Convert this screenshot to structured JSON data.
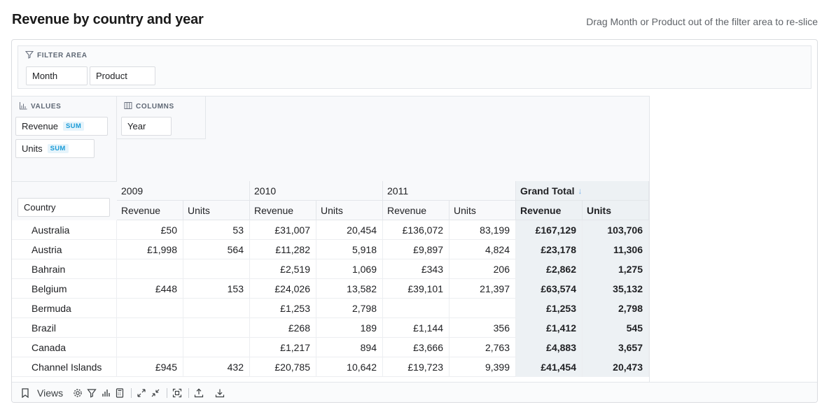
{
  "header": {
    "title": "Revenue by country and year",
    "hint": "Drag Month or Product out of the filter area to re-slice"
  },
  "filter_area": {
    "label": "FILTER AREA",
    "chips": [
      "Month",
      "Product"
    ]
  },
  "values_area": {
    "label": "VALUES",
    "chips": [
      {
        "label": "Revenue",
        "agg": "SUM"
      },
      {
        "label": "Units",
        "agg": "SUM"
      }
    ]
  },
  "columns_area": {
    "label": "COLUMNS",
    "chips": [
      "Year"
    ]
  },
  "rows_area": {
    "chip": "Country"
  },
  "table": {
    "years": [
      "2009",
      "2010",
      "2011"
    ],
    "grand_total_label": "Grand Total",
    "measure_labels": [
      "Revenue",
      "Units"
    ],
    "rows": [
      {
        "country": "Australia",
        "cells": [
          "£50",
          "53",
          "£31,007",
          "20,454",
          "£136,072",
          "83,199"
        ],
        "gt": [
          "£167,129",
          "103,706"
        ]
      },
      {
        "country": "Austria",
        "cells": [
          "£1,998",
          "564",
          "£11,282",
          "5,918",
          "£9,897",
          "4,824"
        ],
        "gt": [
          "£23,178",
          "11,306"
        ]
      },
      {
        "country": "Bahrain",
        "cells": [
          "",
          "",
          "£2,519",
          "1,069",
          "£343",
          "206"
        ],
        "gt": [
          "£2,862",
          "1,275"
        ]
      },
      {
        "country": "Belgium",
        "cells": [
          "£448",
          "153",
          "£24,026",
          "13,582",
          "£39,101",
          "21,397"
        ],
        "gt": [
          "£63,574",
          "35,132"
        ]
      },
      {
        "country": "Bermuda",
        "cells": [
          "",
          "",
          "£1,253",
          "2,798",
          "",
          ""
        ],
        "gt": [
          "£1,253",
          "2,798"
        ]
      },
      {
        "country": "Brazil",
        "cells": [
          "",
          "",
          "£268",
          "189",
          "£1,144",
          "356"
        ],
        "gt": [
          "£1,412",
          "545"
        ]
      },
      {
        "country": "Canada",
        "cells": [
          "",
          "",
          "£1,217",
          "894",
          "£3,666",
          "2,763"
        ],
        "gt": [
          "£4,883",
          "3,657"
        ]
      },
      {
        "country": "Channel Islands",
        "cells": [
          "£945",
          "432",
          "£20,785",
          "10,642",
          "£19,723",
          "9,399"
        ],
        "gt": [
          "£41,454",
          "20,473"
        ]
      }
    ]
  },
  "toolbar": {
    "views_label": "Views"
  }
}
